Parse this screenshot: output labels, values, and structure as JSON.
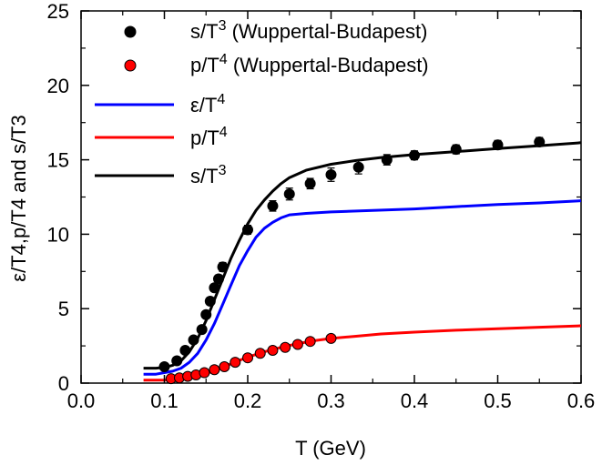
{
  "chart_data": {
    "type": "scatter",
    "xlabel": "T (GeV)",
    "ylabel": "ε/T4,p/T4 and s/T3",
    "xlim": [
      0.0,
      0.6
    ],
    "ylim": [
      0,
      25
    ],
    "x_ticks": [
      0.0,
      0.1,
      0.2,
      0.3,
      0.4,
      0.5,
      0.6
    ],
    "x_tick_labels": [
      "0.0",
      "0.1",
      "0.2",
      "0.3",
      "0.4",
      "0.5",
      "0.6"
    ],
    "y_ticks": [
      0,
      5,
      10,
      15,
      20,
      25
    ],
    "y_tick_labels": [
      "0",
      "5",
      "10",
      "15",
      "20",
      "25"
    ],
    "grid": false,
    "legend_position": "top-right",
    "legend": [
      {
        "kind": "marker",
        "color": "#000000",
        "base": "s/T",
        "sup": "3",
        "suffix": " (Wuppertal-Budapest)"
      },
      {
        "kind": "marker",
        "color": "#ff0000",
        "base": "p/T",
        "sup": "4",
        "suffix": " (Wuppertal-Budapest)"
      },
      {
        "kind": "line",
        "color": "#0000ff",
        "base": "ε/T",
        "sup": "4",
        "suffix": ""
      },
      {
        "kind": "line",
        "color": "#ff0000",
        "base": "p/T",
        "sup": "4",
        "suffix": ""
      },
      {
        "kind": "line",
        "color": "#000000",
        "base": "s/T",
        "sup": "3",
        "suffix": ""
      }
    ],
    "series": [
      {
        "name": "s/T3 (Wuppertal-Budapest)",
        "kind": "points",
        "color": "#000000",
        "x": [
          0.1,
          0.115,
          0.125,
          0.135,
          0.145,
          0.15,
          0.155,
          0.16,
          0.165,
          0.17,
          0.2,
          0.23,
          0.25,
          0.275,
          0.3,
          0.333,
          0.367,
          0.4,
          0.45,
          0.5,
          0.55
        ],
        "y": [
          1.1,
          1.5,
          2.2,
          2.9,
          3.6,
          4.6,
          5.5,
          6.4,
          7.0,
          7.8,
          10.3,
          11.9,
          12.7,
          13.4,
          14.0,
          14.5,
          15.0,
          15.3,
          15.7,
          16.0,
          16.2
        ],
        "yerr": [
          0.15,
          0.2,
          0.2,
          0.2,
          0.2,
          0.2,
          0.25,
          0.25,
          0.25,
          0.3,
          0.3,
          0.35,
          0.4,
          0.35,
          0.45,
          0.45,
          0.35,
          0.3,
          0.3,
          0.3,
          0.3
        ]
      },
      {
        "name": "p/T4 (Wuppertal-Budapest)",
        "kind": "points",
        "color": "#ff0000",
        "x": [
          0.108,
          0.118,
          0.128,
          0.138,
          0.148,
          0.16,
          0.172,
          0.185,
          0.2,
          0.215,
          0.23,
          0.245,
          0.26,
          0.275,
          0.3
        ],
        "y": [
          0.3,
          0.35,
          0.45,
          0.55,
          0.7,
          0.9,
          1.1,
          1.4,
          1.7,
          2.0,
          2.2,
          2.4,
          2.6,
          2.8,
          3.0
        ],
        "yerr": []
      },
      {
        "name": "ε/T4",
        "kind": "line",
        "color": "#0000ff",
        "x": [
          0.075,
          0.09,
          0.1,
          0.11,
          0.12,
          0.13,
          0.14,
          0.15,
          0.16,
          0.17,
          0.18,
          0.19,
          0.2,
          0.21,
          0.22,
          0.23,
          0.24,
          0.25,
          0.27,
          0.3,
          0.35,
          0.4,
          0.45,
          0.5,
          0.55,
          0.6
        ],
        "y": [
          0.6,
          0.6,
          0.7,
          0.8,
          1.0,
          1.4,
          2.0,
          2.9,
          4.0,
          5.3,
          6.6,
          7.9,
          8.9,
          9.8,
          10.4,
          10.8,
          11.1,
          11.3,
          11.4,
          11.5,
          11.6,
          11.7,
          11.85,
          12.0,
          12.1,
          12.25
        ]
      },
      {
        "name": "p/T4",
        "kind": "line",
        "color": "#ff0000",
        "x": [
          0.075,
          0.1,
          0.12,
          0.14,
          0.16,
          0.18,
          0.2,
          0.22,
          0.24,
          0.26,
          0.28,
          0.3,
          0.33,
          0.36,
          0.4,
          0.45,
          0.5,
          0.55,
          0.6
        ],
        "y": [
          0.2,
          0.2,
          0.3,
          0.5,
          0.8,
          1.3,
          1.75,
          2.1,
          2.4,
          2.65,
          2.85,
          3.0,
          3.15,
          3.3,
          3.42,
          3.55,
          3.65,
          3.75,
          3.85
        ]
      },
      {
        "name": "s/T3",
        "kind": "line",
        "color": "#000000",
        "x": [
          0.075,
          0.09,
          0.1,
          0.11,
          0.12,
          0.13,
          0.14,
          0.15,
          0.16,
          0.17,
          0.18,
          0.19,
          0.2,
          0.21,
          0.22,
          0.23,
          0.24,
          0.25,
          0.27,
          0.3,
          0.33,
          0.36,
          0.4,
          0.45,
          0.5,
          0.55,
          0.6
        ],
        "y": [
          1.0,
          1.0,
          1.05,
          1.2,
          1.5,
          2.1,
          3.0,
          4.2,
          5.6,
          7.0,
          8.4,
          9.6,
          10.7,
          11.6,
          12.3,
          12.9,
          13.4,
          13.8,
          14.3,
          14.7,
          14.95,
          15.15,
          15.35,
          15.55,
          15.75,
          15.95,
          16.15
        ]
      }
    ]
  }
}
